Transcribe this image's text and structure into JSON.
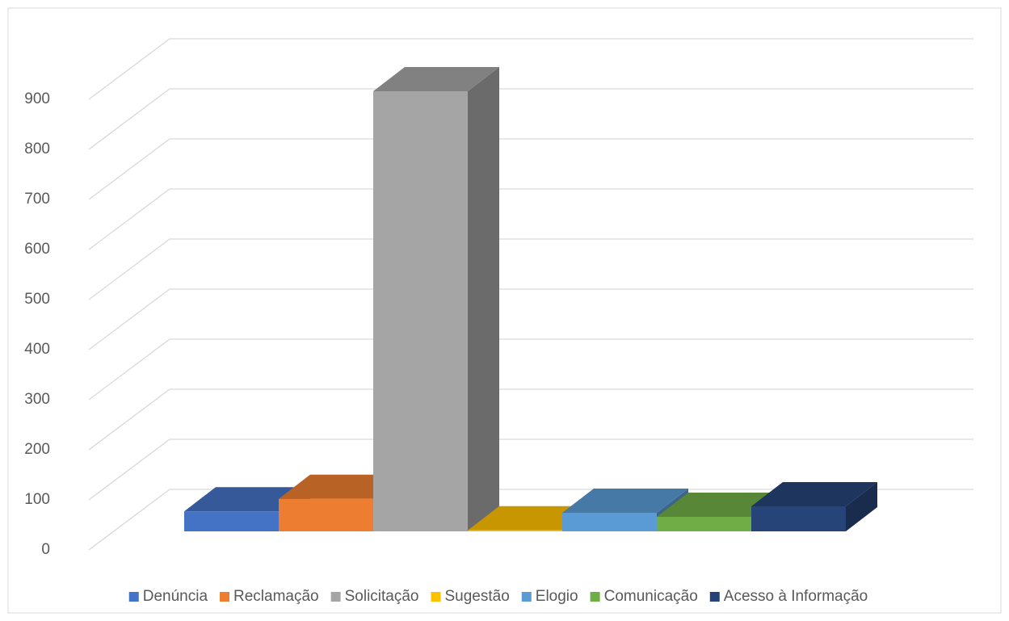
{
  "chart_data": {
    "type": "bar3d",
    "series": [
      {
        "name": "Denúncia",
        "color": "#4472c4",
        "values": [
          40
        ]
      },
      {
        "name": "Reclamação",
        "color": "#ed7d31",
        "values": [
          65
        ]
      },
      {
        "name": "Solicitação",
        "color": "#a5a5a5",
        "values": [
          879
        ]
      },
      {
        "name": "Sugestão",
        "color": "#ffc000",
        "values": [
          2
        ]
      },
      {
        "name": "Elogio",
        "color": "#5b9bd5",
        "values": [
          37
        ]
      },
      {
        "name": "Comunicação",
        "color": "#70ad47",
        "values": [
          29
        ]
      },
      {
        "name": "Acesso à Informação",
        "color": "#264478",
        "values": [
          50
        ]
      }
    ],
    "ylim": [
      0,
      900
    ],
    "yticks": [
      0,
      100,
      200,
      300,
      400,
      500,
      600,
      700,
      800,
      900
    ],
    "grid": true,
    "legend": "bottom"
  }
}
